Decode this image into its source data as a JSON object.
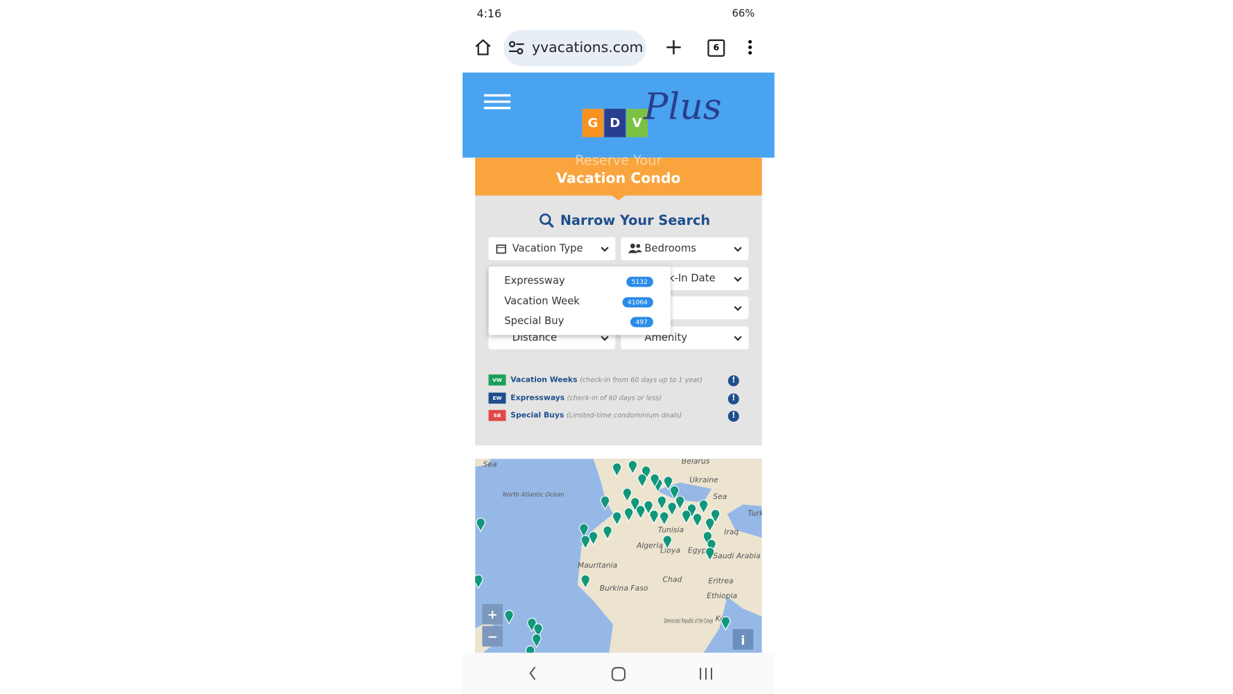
{
  "status_bar": {
    "time": "4:16",
    "battery": "66%"
  },
  "browser": {
    "url": "yvacations.com",
    "tab_count": "6"
  },
  "header": {
    "logo": [
      "G",
      "D",
      "V"
    ],
    "logo_script": "Plus"
  },
  "banner": {
    "line1": "Reserve Your",
    "line2": "Vacation Condo"
  },
  "search": {
    "title": "Narrow Your Search",
    "filters": [
      "Vacation Type",
      "Bedrooms",
      "Check-In Date",
      "Distance",
      "Amenity"
    ],
    "dropdown": [
      {
        "label": "Expressway",
        "count": 5132
      },
      {
        "label": "Vacation Week",
        "count": 41064
      },
      {
        "label": "Special Buy",
        "count": 497
      }
    ]
  },
  "legend": [
    {
      "code": "VW",
      "name": "Vacation Weeks",
      "note": "(check-in from 60 days up to 1 year)"
    },
    {
      "code": "EW",
      "name": "Expressways",
      "note": "(check-in of 60 days or less)"
    },
    {
      "code": "SB",
      "name": "Special Buys",
      "note": "(Limited-time condominium deals)"
    }
  ],
  "map": {
    "labels": [
      "Sea",
      "North Atlantic Ocean",
      "Belarus",
      "Ukraine",
      "Sea",
      "Turk",
      "Iraq",
      "Tunisia",
      "Algeria",
      "Libya",
      "Egypt",
      "Saudi Arabia",
      "Mauritania",
      "Burkina Faso",
      "Chad",
      "Eritrea",
      "Ethiopia",
      "Democratic Republic of the Congo",
      "Ken"
    ],
    "zoom_in": "+",
    "zoom_out": "−",
    "info": "i"
  }
}
